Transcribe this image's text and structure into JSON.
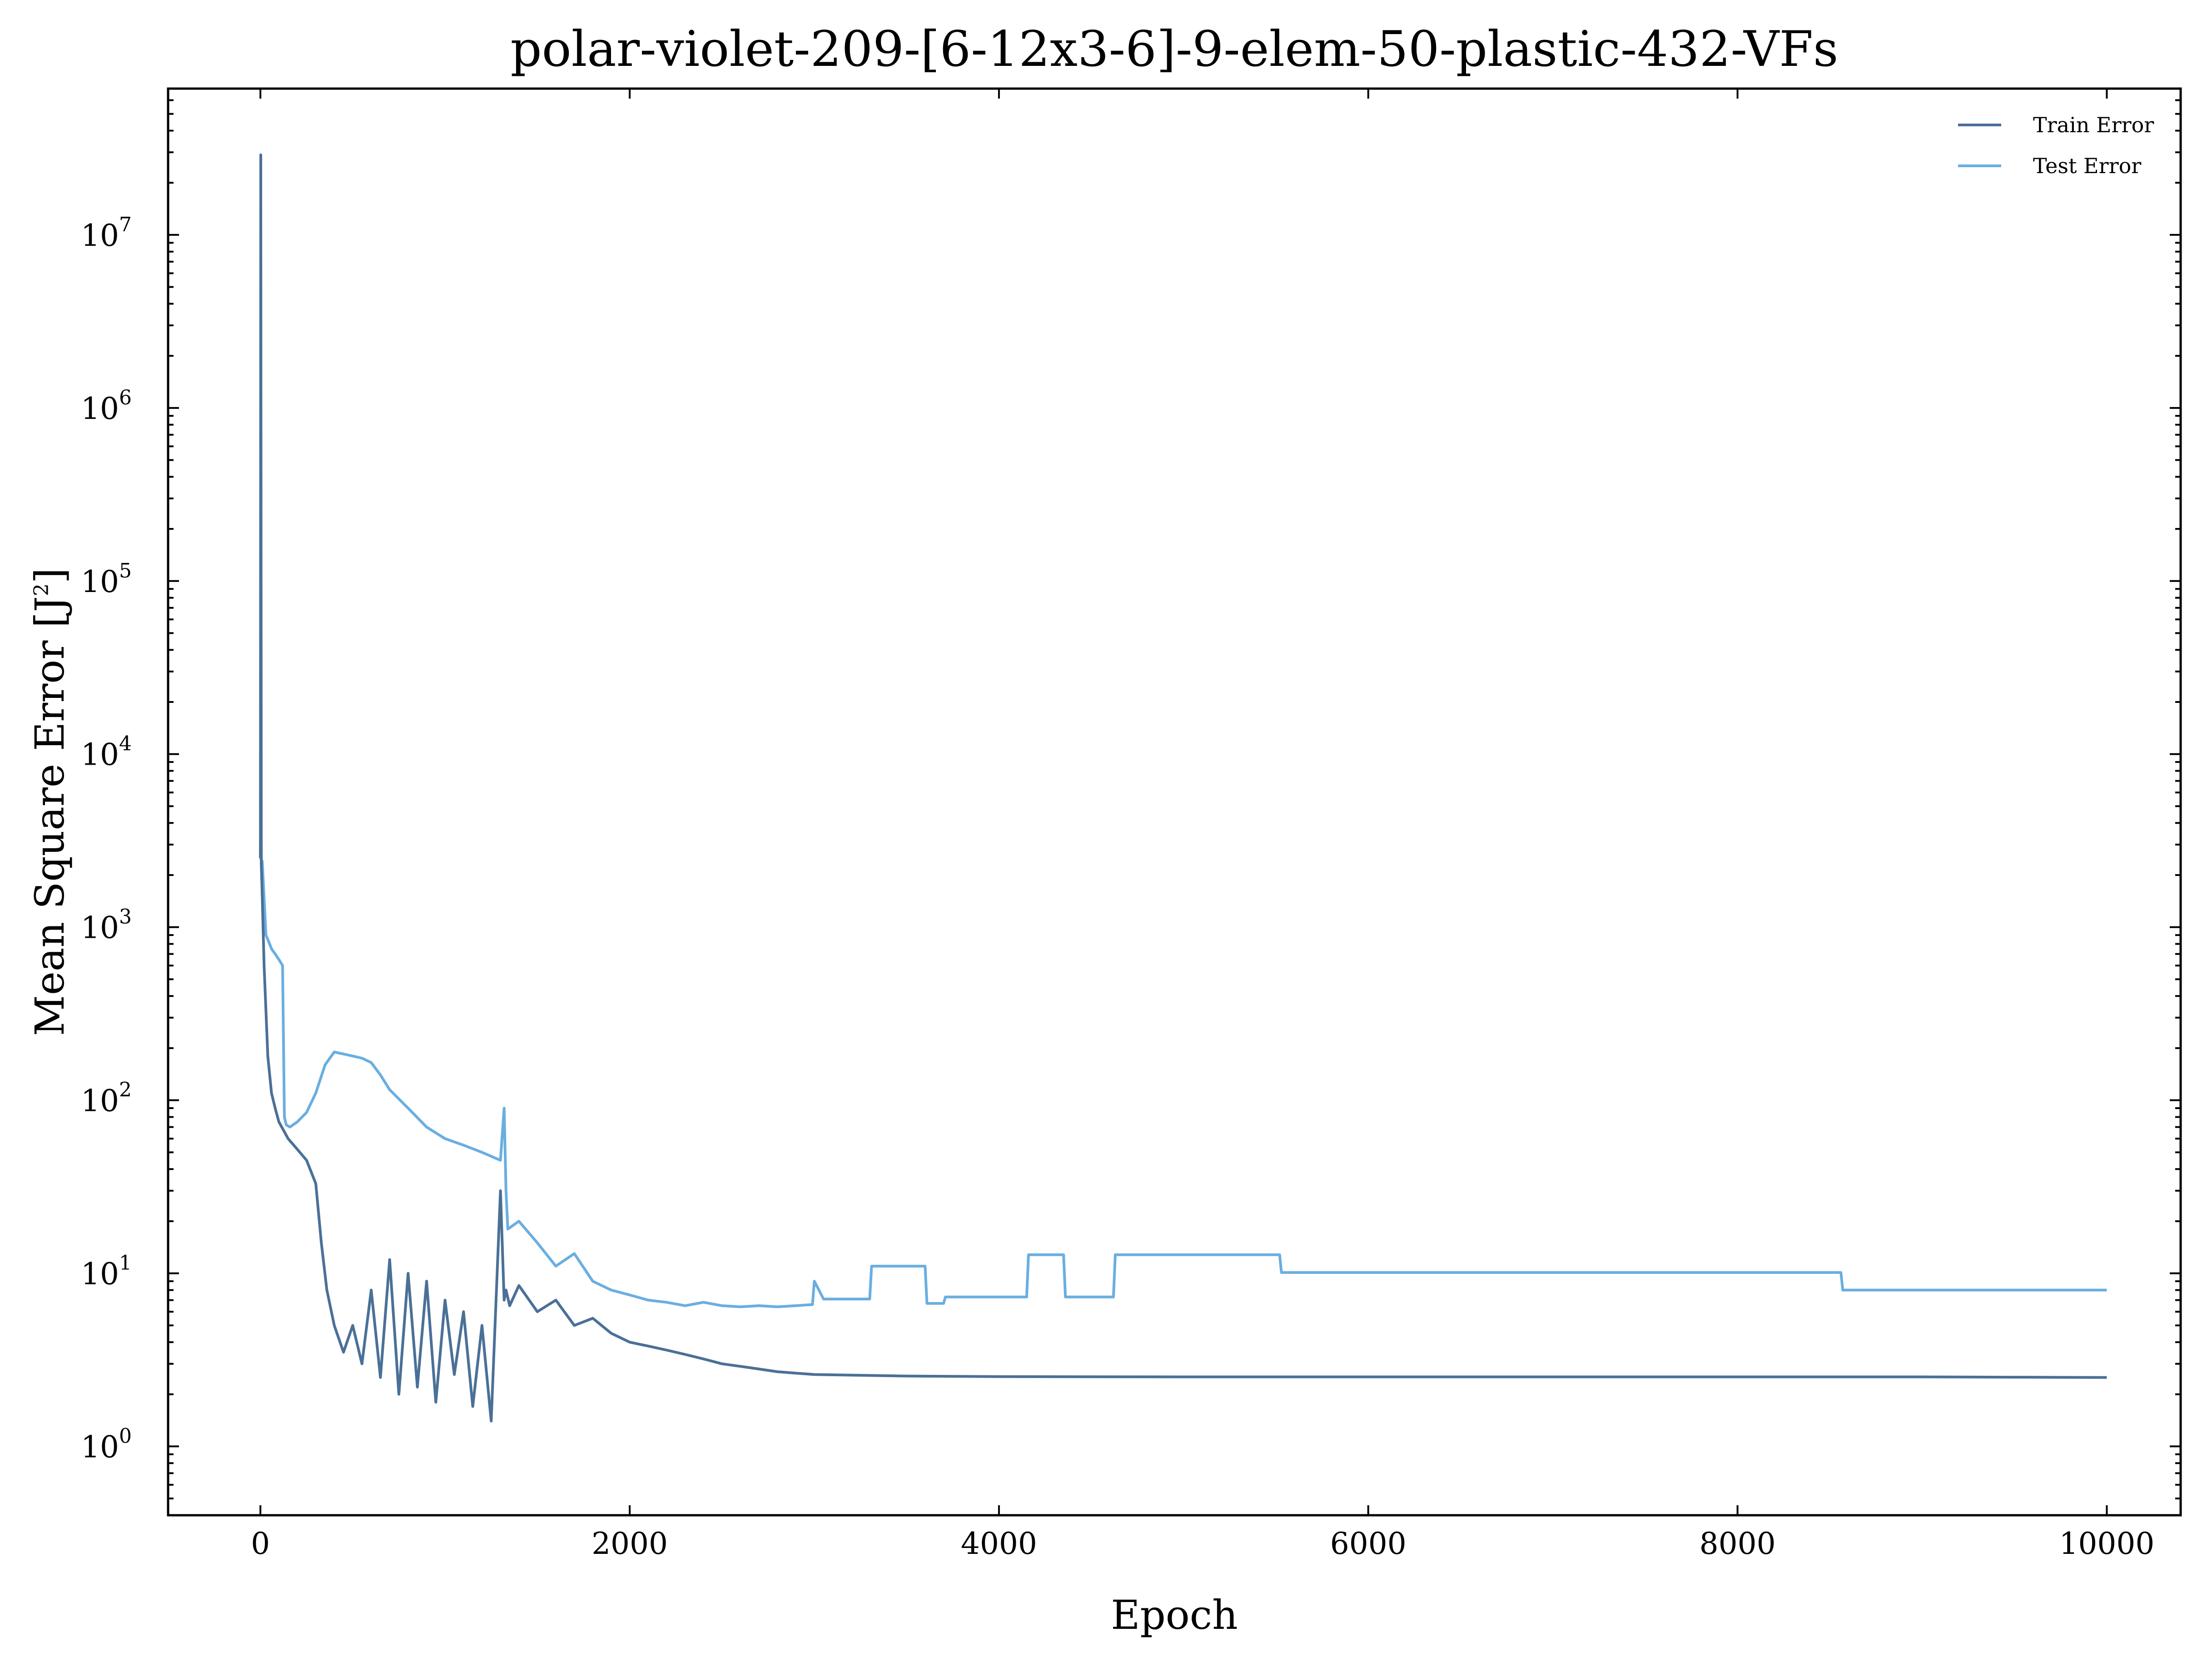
{
  "chart_data": {
    "type": "line",
    "title": "polar-violet-209-[6-12x3-6]-9-elem-50-plastic-432-VFs",
    "xlabel": "Epoch",
    "ylabel": "Mean Square Error [J",
    "ylabel_sup": "2",
    "ylabel_close": "]",
    "xlim": [
      -500,
      10400
    ],
    "ylim": [
      0.4,
      70000000
    ],
    "yscale": "log",
    "x_ticks": [
      0,
      2000,
      4000,
      6000,
      8000,
      10000
    ],
    "x_tick_labels": [
      "0",
      "2000",
      "4000",
      "6000",
      "8000",
      "10000"
    ],
    "y_ticks": [
      1,
      10,
      100,
      1000,
      10000,
      100000,
      1000000,
      10000000
    ],
    "y_tick_base": "10",
    "y_tick_exponents": [
      "0",
      "1",
      "2",
      "3",
      "4",
      "5",
      "6",
      "7"
    ],
    "grid": false,
    "legend_position": "top-right",
    "series": [
      {
        "name": "Train Error",
        "color": "#4a7097",
        "x": [
          0,
          2,
          5,
          10,
          20,
          40,
          60,
          80,
          100,
          150,
          200,
          250,
          300,
          330,
          360,
          400,
          450,
          500,
          550,
          600,
          650,
          700,
          750,
          800,
          850,
          900,
          950,
          1000,
          1050,
          1100,
          1150,
          1200,
          1250,
          1300,
          1320,
          1330,
          1350,
          1400,
          1500,
          1600,
          1700,
          1800,
          1900,
          2000,
          2100,
          2200,
          2300,
          2400,
          2500,
          2600,
          2700,
          2800,
          2900,
          3000,
          3200,
          3500,
          4000,
          5000,
          6000,
          7000,
          8000,
          9000,
          10000
        ],
        "y": [
          2500,
          29000000,
          2300,
          1500,
          600,
          180,
          110,
          90,
          75,
          60,
          52,
          45,
          33,
          15,
          8,
          5,
          3.5,
          5,
          3,
          8,
          2.5,
          12,
          2,
          10,
          2.2,
          9,
          1.8,
          7,
          2.6,
          6,
          1.7,
          5,
          1.4,
          30,
          7,
          8,
          6.5,
          8.5,
          6,
          7,
          5,
          5.5,
          4.5,
          4,
          3.8,
          3.6,
          3.4,
          3.2,
          3.0,
          2.9,
          2.8,
          2.7,
          2.65,
          2.6,
          2.58,
          2.55,
          2.53,
          2.52,
          2.52,
          2.52,
          2.52,
          2.52,
          2.5
        ]
      },
      {
        "name": "Test Error",
        "color": "#6aaee0",
        "x": [
          0,
          10,
          30,
          50,
          60,
          80,
          100,
          120,
          130,
          140,
          160,
          200,
          250,
          300,
          350,
          400,
          450,
          500,
          550,
          600,
          650,
          700,
          800,
          900,
          1000,
          1100,
          1200,
          1300,
          1320,
          1330,
          1340,
          1400,
          1500,
          1600,
          1700,
          1800,
          1900,
          2000,
          2100,
          2200,
          2300,
          2400,
          2500,
          2600,
          2700,
          2800,
          2900,
          2990,
          3000,
          3050,
          3100,
          3300,
          3310,
          3600,
          3610,
          3700,
          3710,
          4150,
          4160,
          4350,
          4360,
          4620,
          4630,
          5520,
          5530,
          8560,
          8570,
          10000
        ],
        "y": [
          2500,
          2400,
          900,
          800,
          750,
          700,
          650,
          600,
          80,
          72,
          70,
          75,
          85,
          110,
          160,
          190,
          185,
          180,
          175,
          165,
          140,
          115,
          90,
          70,
          60,
          55,
          50,
          45,
          90,
          30,
          18,
          20,
          15,
          11,
          13,
          9,
          8,
          7.5,
          7,
          6.8,
          6.5,
          6.8,
          6.5,
          6.4,
          6.5,
          6.4,
          6.5,
          6.6,
          9,
          7.1,
          7.1,
          7.1,
          11,
          11,
          6.7,
          6.7,
          7.3,
          7.3,
          12.8,
          12.8,
          7.3,
          7.3,
          12.8,
          12.8,
          10.1,
          10.1,
          8.0,
          8.0
        ]
      }
    ]
  }
}
